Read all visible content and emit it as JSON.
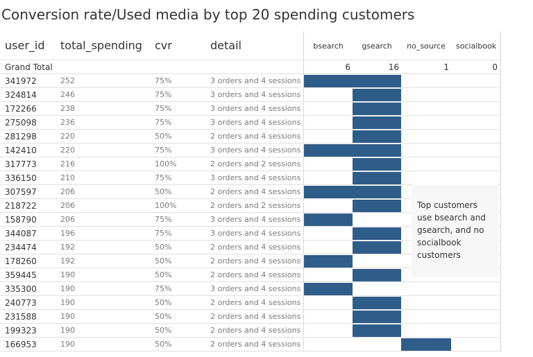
{
  "title": "Conversion rate/Used media by top 20 spending customers",
  "colors": {
    "bar": "#2f5d8a",
    "row_divider": "#e0e0e0",
    "column_divider": "#d6d6d6",
    "annotation_bg": "#f7f7f7"
  },
  "columns": {
    "user_id": "user_id",
    "total_spending": "total_spending",
    "cvr": "cvr",
    "detail": "detail"
  },
  "grand_total_label": "Grand Total",
  "annotation": "Top customers use bsearch and gsearch, and no socialbook customers",
  "chart_data": {
    "type": "heatmap",
    "title": "Conversion rate/Used media by top 20 spending customers",
    "sources": [
      "bsearch",
      "gsearch",
      "no_source",
      "socialbook"
    ],
    "grand_total": [
      6,
      16,
      1,
      0
    ],
    "rows": [
      {
        "user_id": "341972",
        "total_spending": "252",
        "cvr": "75%",
        "detail": "3 orders and 4 sessions",
        "used": [
          1,
          1,
          0,
          0
        ]
      },
      {
        "user_id": "324814",
        "total_spending": "246",
        "cvr": "75%",
        "detail": "3 orders and 4 sessions",
        "used": [
          0,
          1,
          0,
          0
        ]
      },
      {
        "user_id": "172266",
        "total_spending": "238",
        "cvr": "75%",
        "detail": "3 orders and 4 sessions",
        "used": [
          0,
          1,
          0,
          0
        ]
      },
      {
        "user_id": "275098",
        "total_spending": "236",
        "cvr": "75%",
        "detail": "3 orders and 4 sessions",
        "used": [
          0,
          1,
          0,
          0
        ]
      },
      {
        "user_id": "281298",
        "total_spending": "220",
        "cvr": "50%",
        "detail": "2 orders and 4 sessions",
        "used": [
          0,
          1,
          0,
          0
        ]
      },
      {
        "user_id": "142410",
        "total_spending": "220",
        "cvr": "75%",
        "detail": "3 orders and 4 sessions",
        "used": [
          1,
          1,
          0,
          0
        ]
      },
      {
        "user_id": "317773",
        "total_spending": "216",
        "cvr": "100%",
        "detail": "2 orders and 2 sessions",
        "used": [
          0,
          1,
          0,
          0
        ]
      },
      {
        "user_id": "336150",
        "total_spending": "210",
        "cvr": "75%",
        "detail": "3 orders and 4 sessions",
        "used": [
          0,
          1,
          0,
          0
        ]
      },
      {
        "user_id": "307597",
        "total_spending": "206",
        "cvr": "50%",
        "detail": "2 orders and 4 sessions",
        "used": [
          1,
          1,
          0,
          0
        ]
      },
      {
        "user_id": "218722",
        "total_spending": "206",
        "cvr": "100%",
        "detail": "2 orders and 2 sessions",
        "used": [
          0,
          1,
          0,
          0
        ]
      },
      {
        "user_id": "158790",
        "total_spending": "206",
        "cvr": "75%",
        "detail": "3 orders and 4 sessions",
        "used": [
          1,
          0,
          0,
          0
        ]
      },
      {
        "user_id": "344087",
        "total_spending": "196",
        "cvr": "75%",
        "detail": "3 orders and 4 sessions",
        "used": [
          0,
          1,
          0,
          0
        ]
      },
      {
        "user_id": "234474",
        "total_spending": "192",
        "cvr": "50%",
        "detail": "2 orders and 4 sessions",
        "used": [
          0,
          1,
          0,
          0
        ]
      },
      {
        "user_id": "178260",
        "total_spending": "192",
        "cvr": "50%",
        "detail": "2 orders and 4 sessions",
        "used": [
          1,
          0,
          0,
          0
        ]
      },
      {
        "user_id": "359445",
        "total_spending": "190",
        "cvr": "50%",
        "detail": "2 orders and 4 sessions",
        "used": [
          0,
          1,
          0,
          0
        ]
      },
      {
        "user_id": "335300",
        "total_spending": "190",
        "cvr": "75%",
        "detail": "3 orders and 4 sessions",
        "used": [
          1,
          0,
          0,
          0
        ]
      },
      {
        "user_id": "240773",
        "total_spending": "190",
        "cvr": "50%",
        "detail": "2 orders and 4 sessions",
        "used": [
          0,
          1,
          0,
          0
        ]
      },
      {
        "user_id": "231588",
        "total_spending": "190",
        "cvr": "50%",
        "detail": "2 orders and 4 sessions",
        "used": [
          0,
          1,
          0,
          0
        ]
      },
      {
        "user_id": "199323",
        "total_spending": "190",
        "cvr": "50%",
        "detail": "2 orders and 4 sessions",
        "used": [
          0,
          1,
          0,
          0
        ]
      },
      {
        "user_id": "166953",
        "total_spending": "190",
        "cvr": "50%",
        "detail": "2 orders and 4 sessions",
        "used": [
          0,
          0,
          1,
          0
        ]
      }
    ]
  }
}
